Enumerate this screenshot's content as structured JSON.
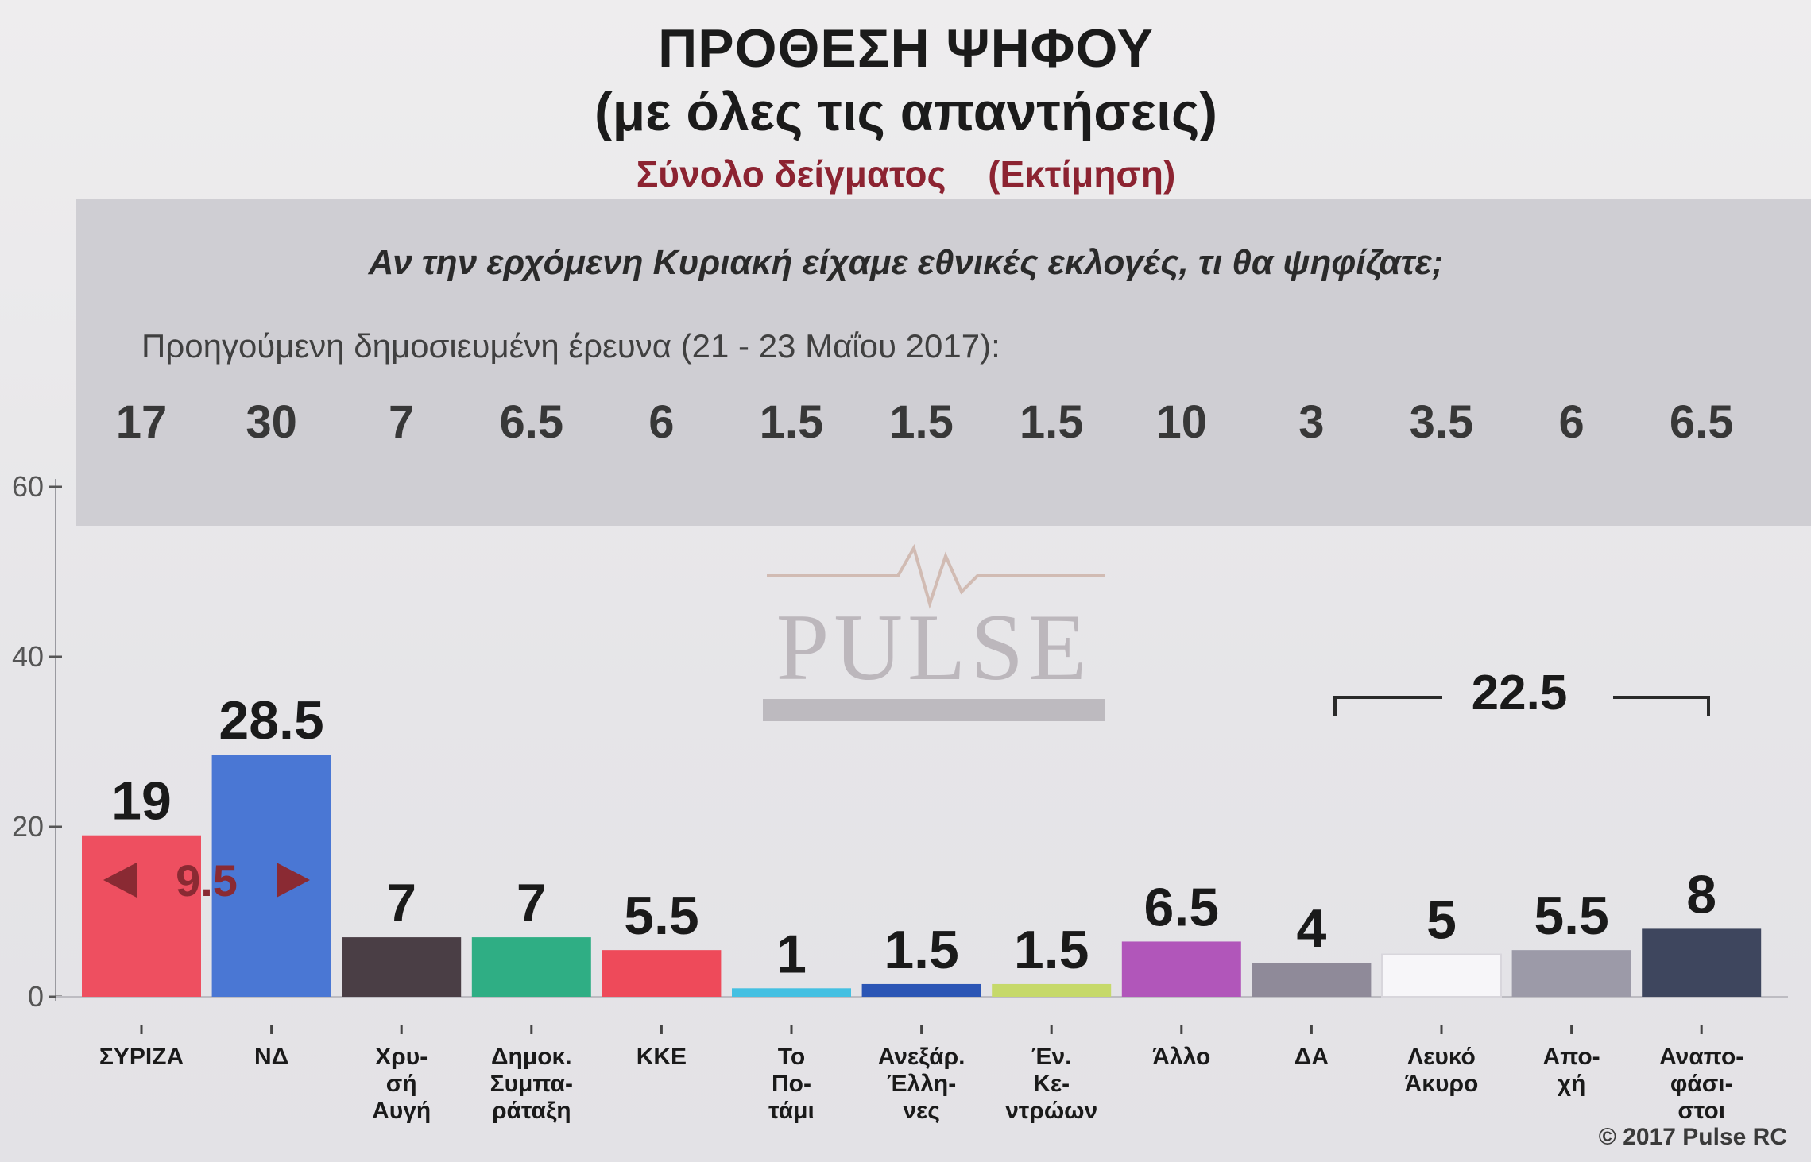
{
  "header": {
    "title": "ΠΡΟΘΕΣΗ ΨΗΦΟΥ",
    "subtitle": "(με όλες τις απαντήσεις)",
    "sample": "Σύνολο δείγματος",
    "estimate": "(Εκτίμηση)"
  },
  "question": "Αν την ερχόμενη Κυριακή είχαμε εθνικές εκλογές, τι θα ψηφίζατε;",
  "previous_survey": {
    "label": "Προηγούμενη δημοσιευμένη έρευνα (21 - 23 Μαΐου 2017):",
    "values": [
      "17",
      "30",
      "7",
      "6.5",
      "6",
      "1.5",
      "1.5",
      "1.5",
      "10",
      "3",
      "3.5",
      "6",
      "6.5"
    ]
  },
  "watermark": "PULSE",
  "copyright": "© 2017 Pulse RC",
  "chart_data": {
    "type": "bar",
    "title": "ΠΡΟΘΕΣΗ ΨΗΦΟΥ",
    "categories": [
      "ΣΥΡΙΖΑ",
      "ΝΔ",
      "Χρυσή Αυγή",
      "Δημοκ. Συμπαράταξη",
      "ΚΚΕ",
      "Το Ποτάμι",
      "Ανεξάρ. Έλληνες",
      "Έν. Κεντρώων",
      "Άλλο",
      "ΔΑ",
      "Λευκό Άκυρο",
      "Αποχή",
      "Αναποφάσιστοι"
    ],
    "category_lines": [
      [
        "ΣΥΡΙΖΑ"
      ],
      [
        "ΝΔ"
      ],
      [
        "Χρυ-",
        "σή",
        "Αυγή"
      ],
      [
        "Δημοκ.",
        "Συμπα-",
        "ράταξη"
      ],
      [
        "ΚΚΕ"
      ],
      [
        "Το",
        "Πο-",
        "τάμι"
      ],
      [
        "Ανεξάρ.",
        "Έλλη-",
        "νες"
      ],
      [
        "Έν.",
        "Κε-",
        "ντρώων"
      ],
      [
        "Άλλο"
      ],
      [
        "ΔΑ"
      ],
      [
        "Λευκό",
        "Άκυρο"
      ],
      [
        "Απο-",
        "χή"
      ],
      [
        "Αναπο-",
        "φάσι-",
        "στοι"
      ]
    ],
    "values": [
      19,
      28.5,
      7,
      7,
      5.5,
      1,
      1.5,
      1.5,
      6.5,
      4,
      5,
      5.5,
      8
    ],
    "value_labels": [
      "19",
      "28.5",
      "7",
      "7",
      "5.5",
      "1",
      "1.5",
      "1.5",
      "6.5",
      "4",
      "5",
      "5.5",
      "8"
    ],
    "colors": [
      "#ee4f60",
      "#4a77d4",
      "#4a3e45",
      "#2fae84",
      "#ee4a5a",
      "#44c0e2",
      "#2b55b5",
      "#c6d96a",
      "#b156ba",
      "#8f8a99",
      "#f7f6f9",
      "#9c9aa8",
      "#3e465e"
    ],
    "ylim": [
      0,
      60
    ],
    "yticks": [
      0,
      20,
      40,
      60
    ],
    "ytick_labels": [
      "0",
      "20",
      "40",
      "60"
    ],
    "annotations": {
      "difference": {
        "label": "9.5",
        "between": [
          "ΣΥΡΙΖΑ",
          "ΝΔ"
        ]
      },
      "group_total": {
        "label": "22.5",
        "span": [
          "ΔΑ",
          "Αναποφάσιστοι"
        ]
      }
    },
    "grid": false,
    "legend": "none"
  }
}
